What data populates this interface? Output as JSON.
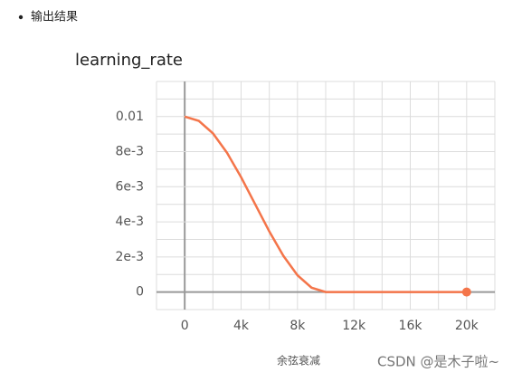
{
  "heading": "输出结果",
  "watermark": "CSDN @是木子啦~",
  "chart_data": {
    "type": "line",
    "title": "learning_rate",
    "caption": "余弦衰减",
    "color": "#f4754a",
    "grid": true,
    "x": [
      0,
      1000,
      2000,
      3000,
      4000,
      5000,
      6000,
      7000,
      8000,
      9000,
      10000,
      11000,
      12000,
      13000,
      14000,
      15000,
      16000,
      17000,
      18000,
      19000,
      20000
    ],
    "values": [
      0.01,
      0.009755,
      0.009045,
      0.007939,
      0.006545,
      0.005,
      0.003455,
      0.002061,
      0.000955,
      0.000245,
      0,
      0,
      0,
      0,
      0,
      0,
      0,
      0,
      0,
      0,
      0
    ],
    "xlim": [
      -2000,
      22000
    ],
    "ylim": [
      -0.001,
      0.012
    ],
    "xticks": [
      0,
      {
        "value": 4000,
        "label": "4k"
      },
      {
        "value": 8000,
        "label": "8k"
      },
      {
        "value": 12000,
        "label": "12k"
      },
      {
        "value": 16000,
        "label": "16k"
      },
      {
        "value": 20000,
        "label": "20k"
      }
    ],
    "yticks": [
      0,
      {
        "value": 0.002,
        "label": "2e-3"
      },
      {
        "value": 0.004,
        "label": "4e-3"
      },
      {
        "value": 0.006,
        "label": "6e-3"
      },
      {
        "value": 0.008,
        "label": "8e-3"
      },
      0.01
    ],
    "x_minor_ticks": [
      -2000,
      2000,
      6000,
      10000,
      14000,
      18000,
      22000
    ],
    "y_minor_ticks": [
      -0.001,
      0.001,
      0.003,
      0.005,
      0.007,
      0.009,
      0.011,
      0.012
    ]
  }
}
